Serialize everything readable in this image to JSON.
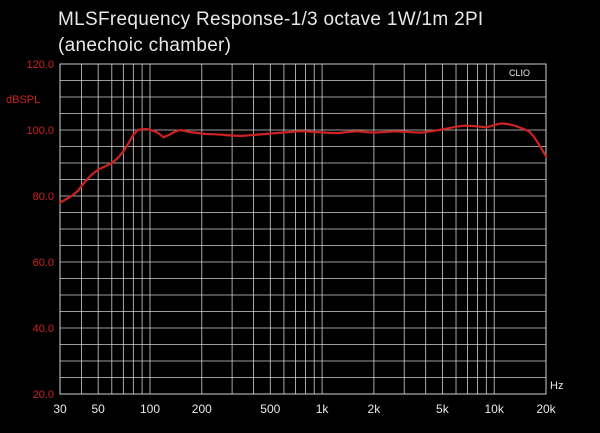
{
  "chart_data": {
    "type": "line",
    "title": "MLSFrequency Response-1/3 octave 1W/1m 2PI",
    "subtitle": "(anechoic chamber)",
    "xlabel": "Hz",
    "ylabel": "dBSPL",
    "brand": "CLIO",
    "xscale": "log",
    "xlim": [
      30,
      20000
    ],
    "ylim": [
      20,
      120
    ],
    "grid": true,
    "x_ticks": [
      30,
      50,
      100,
      200,
      500,
      1000,
      2000,
      5000,
      10000,
      20000
    ],
    "x_tick_labels": [
      "30",
      "50",
      "100",
      "200",
      "500",
      "1k",
      "2k",
      "5k",
      "10k",
      "20k"
    ],
    "y_ticks": [
      20,
      40,
      60,
      80,
      100,
      120
    ],
    "y_tick_labels": [
      "20.0",
      "40.0",
      "60.0",
      "80.0",
      "100.0",
      "120.0"
    ],
    "series": [
      {
        "name": "Frequency Response",
        "color": "#cc2222",
        "x": [
          30,
          32,
          35,
          38,
          40,
          43,
          46,
          50,
          55,
          60,
          65,
          70,
          75,
          80,
          85,
          90,
          95,
          100,
          110,
          120,
          130,
          140,
          150,
          170,
          190,
          210,
          240,
          270,
          300,
          340,
          380,
          420,
          470,
          520,
          580,
          650,
          720,
          800,
          900,
          1000,
          1100,
          1250,
          1400,
          1600,
          1800,
          2000,
          2300,
          2600,
          3000,
          3400,
          3800,
          4300,
          4800,
          5400,
          6000,
          6700,
          7500,
          8300,
          9000,
          10000,
          11000,
          12000,
          13000,
          14000,
          15000,
          16000,
          17000,
          18000,
          19000,
          20000
        ],
        "y": [
          78,
          78.8,
          80,
          81.5,
          83,
          85,
          86.5,
          88,
          89,
          90,
          91.5,
          93.5,
          96,
          98.5,
          100,
          100.2,
          100.3,
          100.1,
          99.3,
          97.8,
          98.6,
          99.5,
          100,
          99.4,
          99.1,
          98.8,
          98.7,
          98.5,
          98.3,
          98.2,
          98.4,
          98.6,
          98.8,
          99,
          99.2,
          99.4,
          99.6,
          99.6,
          99.4,
          99.3,
          99.1,
          99.1,
          99.4,
          99.6,
          99.4,
          99.2,
          99.4,
          99.6,
          99.5,
          99.3,
          99.2,
          99.6,
          100,
          100.5,
          101,
          101.3,
          101.2,
          101,
          100.8,
          101.5,
          102,
          101.8,
          101.4,
          100.8,
          100.2,
          99.5,
          98,
          96,
          94,
          92
        ]
      }
    ]
  }
}
